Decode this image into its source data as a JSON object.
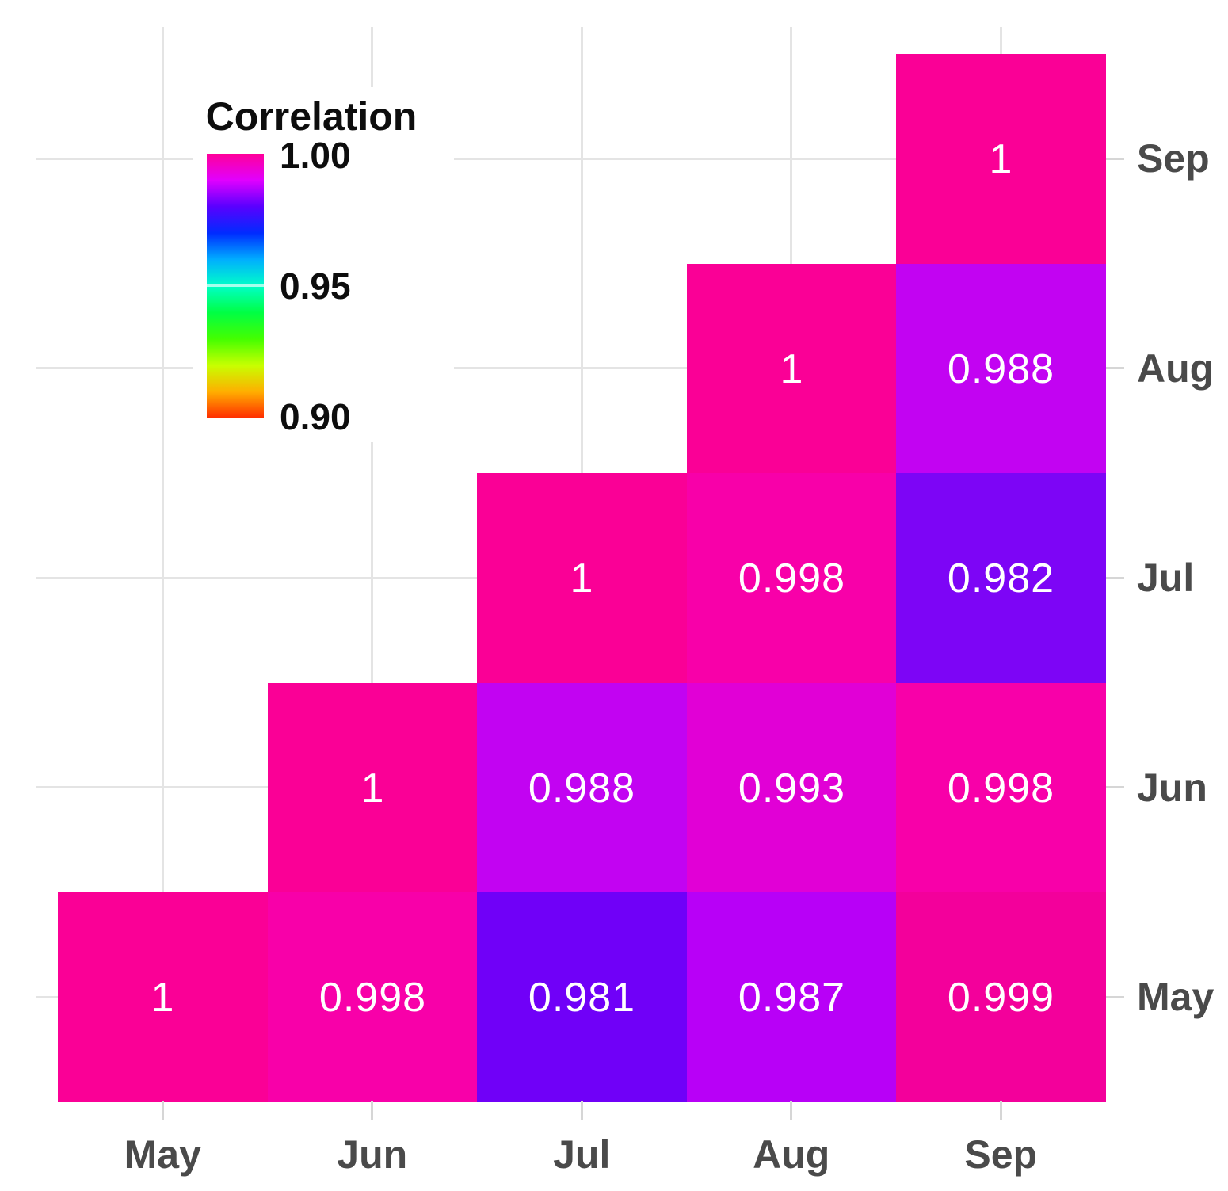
{
  "chart_data": {
    "type": "heatmap",
    "title": "",
    "x_categories": [
      "May",
      "Jun",
      "Jul",
      "Aug",
      "Sep"
    ],
    "y_categories_top_to_bottom": [
      "Sep",
      "Aug",
      "Jul",
      "Jun",
      "May"
    ],
    "legend_title": "Correlation",
    "scale_range": [
      0.9,
      1.0
    ],
    "scale_tick_labels": [
      "1.00",
      "0.95",
      "0.90"
    ],
    "legend_gradient_top_to_bottom": [
      "#FF0099",
      "#E100FF",
      "#5900FF",
      "#002BFF",
      "#00AEFF",
      "#00FFC8",
      "#00FF44",
      "#44FF00",
      "#C8FF00",
      "#FFAE00",
      "#FF2B00"
    ],
    "grid_color": "#e4e4e4",
    "cell_text_color": "#ffffff",
    "axis_text_color": "#4a4a4a",
    "cells": [
      {
        "row": "Sep",
        "col": "Sep",
        "label": "1",
        "value": 1.0,
        "color": "#FA0096"
      },
      {
        "row": "Aug",
        "col": "Aug",
        "label": "1",
        "value": 1.0,
        "color": "#FA0096"
      },
      {
        "row": "Aug",
        "col": "Sep",
        "label": "0.988",
        "value": 0.988,
        "color": "#C203F2"
      },
      {
        "row": "Jul",
        "col": "Jul",
        "label": "1",
        "value": 1.0,
        "color": "#FA0096"
      },
      {
        "row": "Jul",
        "col": "Aug",
        "label": "0.998",
        "value": 0.998,
        "color": "#F800A9"
      },
      {
        "row": "Jul",
        "col": "Sep",
        "label": "0.982",
        "value": 0.982,
        "color": "#7D05F6"
      },
      {
        "row": "Jun",
        "col": "Jun",
        "label": "1",
        "value": 1.0,
        "color": "#FA0096"
      },
      {
        "row": "Jun",
        "col": "Jul",
        "label": "0.988",
        "value": 0.988,
        "color": "#C203F2"
      },
      {
        "row": "Jun",
        "col": "Aug",
        "label": "0.993",
        "value": 0.993,
        "color": "#E100D6"
      },
      {
        "row": "Jun",
        "col": "Sep",
        "label": "0.998",
        "value": 0.998,
        "color": "#F800A9"
      },
      {
        "row": "May",
        "col": "May",
        "label": "1",
        "value": 1.0,
        "color": "#FA0096"
      },
      {
        "row": "May",
        "col": "Jun",
        "label": "0.998",
        "value": 0.998,
        "color": "#F800A9"
      },
      {
        "row": "May",
        "col": "Jul",
        "label": "0.981",
        "value": 0.981,
        "color": "#7000F8"
      },
      {
        "row": "May",
        "col": "Aug",
        "label": "0.987",
        "value": 0.987,
        "color": "#B800F7"
      },
      {
        "row": "May",
        "col": "Sep",
        "label": "0.999",
        "value": 0.999,
        "color": "#F3009B"
      }
    ]
  }
}
